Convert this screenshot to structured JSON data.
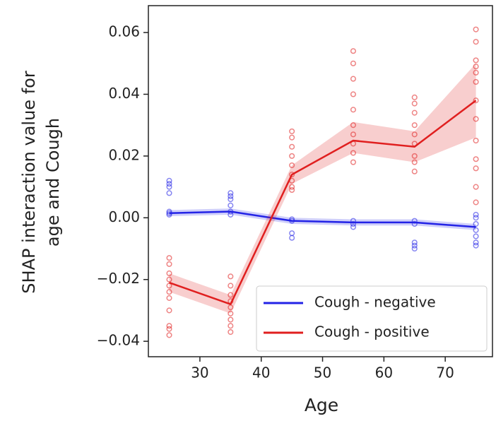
{
  "chart_data": {
    "type": "line",
    "xlabel": "Age",
    "ylabel": [
      "SHAP interaction value for",
      "age and Cough"
    ],
    "xlim": [
      21.6,
      77.7
    ],
    "ylim": [
      -0.045,
      0.0687
    ],
    "xticks": [
      30,
      40,
      50,
      60,
      70
    ],
    "yticks": [
      {
        "value": -0.04,
        "label": "−0.04"
      },
      {
        "value": -0.02,
        "label": "−0.02"
      },
      {
        "value": 0,
        "label": "0.00"
      },
      0.02,
      0.04,
      0.06
    ],
    "legend": "lower right",
    "x": [
      25,
      35,
      45,
      55,
      65,
      75
    ],
    "series": [
      {
        "name": "Cough - negative",
        "color": "#2323e6",
        "values": [
          0.0015,
          0.002,
          -0.001,
          -0.0015,
          -0.0015,
          -0.003
        ],
        "lower": [
          0.0005,
          0.001,
          -0.002,
          -0.0025,
          -0.0025,
          -0.004
        ],
        "upper": [
          0.0025,
          0.003,
          0.0,
          -0.0005,
          -0.0005,
          -0.002
        ],
        "points_x": [
          25,
          25,
          25,
          25,
          25,
          25,
          25,
          35,
          35,
          35,
          35,
          35,
          35,
          45,
          45,
          45,
          45,
          55,
          55,
          55,
          65,
          65,
          65,
          65,
          65,
          75,
          75,
          75,
          75,
          75,
          75,
          75
        ],
        "points_y": [
          0.012,
          0.011,
          0.01,
          0.008,
          0.002,
          0.0015,
          0.001,
          0.008,
          0.007,
          0.006,
          0.004,
          0.002,
          0.001,
          -0.0005,
          -0.001,
          -0.005,
          -0.0065,
          -0.001,
          -0.002,
          -0.003,
          -0.001,
          -0.002,
          -0.008,
          -0.009,
          -0.01,
          0.001,
          0,
          -0.002,
          -0.004,
          -0.006,
          -0.008,
          -0.009
        ]
      },
      {
        "name": "Cough - positive",
        "color": "#e01f1f",
        "values": [
          -0.021,
          -0.028,
          0.014,
          0.025,
          0.023,
          0.038
        ],
        "lower": [
          -0.024,
          -0.031,
          0.011,
          0.021,
          0.018,
          0.026
        ],
        "upper": [
          -0.018,
          -0.025,
          0.017,
          0.031,
          0.028,
          0.05
        ],
        "points_x": [
          25,
          25,
          25,
          25,
          25,
          25,
          25,
          25,
          25,
          25,
          25,
          35,
          35,
          35,
          35,
          35,
          35,
          35,
          35,
          35,
          45,
          45,
          45,
          45,
          45,
          45,
          45,
          45,
          45,
          55,
          55,
          55,
          55,
          55,
          55,
          55,
          55,
          55,
          55,
          65,
          65,
          65,
          65,
          65,
          65,
          65,
          65,
          65,
          75,
          75,
          75,
          75,
          75,
          75,
          75,
          75,
          75,
          75,
          75,
          75,
          75
        ],
        "points_y": [
          -0.013,
          -0.015,
          -0.018,
          -0.02,
          -0.022,
          -0.024,
          -0.026,
          -0.03,
          -0.035,
          -0.036,
          -0.038,
          -0.019,
          -0.022,
          -0.025,
          -0.027,
          -0.029,
          -0.031,
          -0.033,
          -0.035,
          -0.037,
          0.028,
          0.026,
          0.023,
          0.02,
          0.017,
          0.014,
          0.012,
          0.01,
          0.009,
          0.054,
          0.05,
          0.045,
          0.04,
          0.035,
          0.03,
          0.027,
          0.024,
          0.021,
          0.018,
          0.039,
          0.037,
          0.034,
          0.03,
          0.027,
          0.024,
          0.02,
          0.018,
          0.015,
          0.061,
          0.057,
          0.051,
          0.049,
          0.047,
          0.044,
          0.038,
          0.032,
          0.025,
          0.019,
          0.016,
          0.01,
          0.005
        ]
      }
    ]
  }
}
